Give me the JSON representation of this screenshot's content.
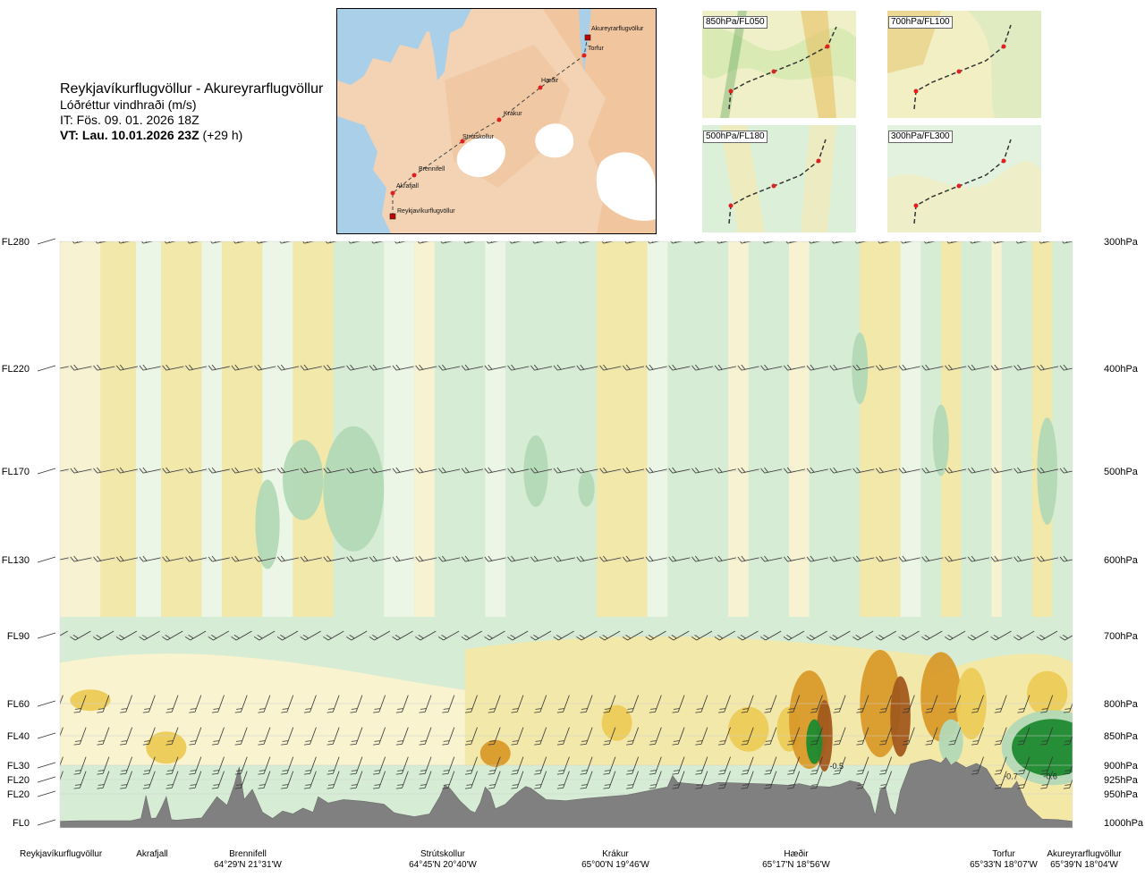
{
  "header": {
    "route_title": "Reykjavíkurflugvöllur - Akureyrarflugvöllur",
    "parameter": "Lóðréttur vindhraði (m/s)",
    "issue_time": "IT: Fös. 09. 01. 2026 18Z",
    "valid_time_bold": "VT: Lau. 10.01.2026 23Z",
    "valid_time_lead": "(+29 h)"
  },
  "map": {
    "points": [
      {
        "name": "Akureyrarflugvöllur",
        "kind": "airport"
      },
      {
        "name": "Torfur",
        "kind": "point"
      },
      {
        "name": "Hæðir",
        "kind": "point"
      },
      {
        "name": "Krákur",
        "kind": "point"
      },
      {
        "name": "Strútskollur",
        "kind": "point"
      },
      {
        "name": "Brennifell",
        "kind": "point"
      },
      {
        "name": "Akrafjall",
        "kind": "point"
      },
      {
        "name": "Reykjavíkurflugvöllur",
        "kind": "airport"
      }
    ]
  },
  "mini_maps": [
    {
      "label": "850hPa/FL050"
    },
    {
      "label": "700hPa/FL100"
    },
    {
      "label": "500hPa/FL180"
    },
    {
      "label": "300hPa/FL300"
    }
  ],
  "colors": {
    "sink_strong": "#8cbf96",
    "sink_mid": "#b3d9b6",
    "sink_light": "#d6ecd4",
    "sink_faint": "#eef7e8",
    "rise_faint": "#fbf3d0",
    "rise_light": "#f5e8a4",
    "rise_mid": "#eccb56",
    "rise_strong": "#d99a2a",
    "rise_max": "#a25a1e",
    "lift_green": "#1e8a30",
    "terrain": "#808080",
    "route_line": "#444444"
  },
  "chart_data": {
    "type": "heatmap",
    "title": "Reykjavíkurflugvöllur - Akureyrarflugvöllur",
    "quantity": "Lóðréttur vindhraði (m/s)",
    "x_range": [
      0,
      1
    ],
    "flight_levels": [
      {
        "label": "FL280",
        "hpa": "300hPa",
        "p": 300
      },
      {
        "label": "FL220",
        "hpa": "400hPa",
        "p": 400
      },
      {
        "label": "FL170",
        "hpa": "500hPa",
        "p": 500
      },
      {
        "label": "FL130",
        "hpa": "600hPa",
        "p": 600
      },
      {
        "label": "FL90",
        "hpa": "700hPa",
        "p": 700
      },
      {
        "label": "FL60",
        "hpa": "800hPa",
        "p": 800
      },
      {
        "label": "FL40",
        "hpa": "850hPa",
        "p": 850
      },
      {
        "label": "FL30",
        "hpa": "900hPa",
        "p": 900
      },
      {
        "label": "FL20",
        "hpa": "925hPa",
        "p": 925
      },
      {
        "label": "FL20",
        "hpa": "950hPa",
        "p": 950
      },
      {
        "label": "FL0",
        "hpa": "1000hPa",
        "p": 1000
      }
    ],
    "waypoints": [
      {
        "name": "Reykjavíkurflugvöllur",
        "coords": "",
        "x": 0.0
      },
      {
        "name": "Akrafjall",
        "coords": "",
        "x": 0.093
      },
      {
        "name": "Brennifell",
        "coords": "64°29'N 21°31'W",
        "x": 0.186
      },
      {
        "name": "Strútskollur",
        "coords": "64°45'N 20°40'W",
        "x": 0.394
      },
      {
        "name": "Krákur",
        "coords": "65°00'N 19°46'W",
        "x": 0.572
      },
      {
        "name": "Hæðir",
        "coords": "65°17'N 18°56'W",
        "x": 0.778
      },
      {
        "name": "Torfur",
        "coords": "65°33'N 18°07'W",
        "x": 0.936
      },
      {
        "name": "Akureyrarflugvöllur",
        "coords": "65°39'N 18°04'W",
        "x": 1.0
      }
    ],
    "terrain_profile_hpa": [
      [
        0.0,
        998
      ],
      [
        0.02,
        997
      ],
      [
        0.07,
        997
      ],
      [
        0.08,
        993
      ],
      [
        0.085,
        953
      ],
      [
        0.09,
        993
      ],
      [
        0.095,
        992
      ],
      [
        0.1,
        975
      ],
      [
        0.105,
        955
      ],
      [
        0.11,
        995
      ],
      [
        0.115,
        996
      ],
      [
        0.14,
        992
      ],
      [
        0.155,
        955
      ],
      [
        0.165,
        970
      ],
      [
        0.172,
        935
      ],
      [
        0.177,
        903
      ],
      [
        0.182,
        960
      ],
      [
        0.19,
        942
      ],
      [
        0.2,
        982
      ],
      [
        0.21,
        993
      ],
      [
        0.22,
        980
      ],
      [
        0.23,
        985
      ],
      [
        0.24,
        975
      ],
      [
        0.25,
        982
      ],
      [
        0.255,
        955
      ],
      [
        0.265,
        966
      ],
      [
        0.28,
        960
      ],
      [
        0.3,
        963
      ],
      [
        0.32,
        968
      ],
      [
        0.33,
        983
      ],
      [
        0.335,
        985
      ],
      [
        0.35,
        990
      ],
      [
        0.365,
        985
      ],
      [
        0.375,
        955
      ],
      [
        0.38,
        935
      ],
      [
        0.385,
        940
      ],
      [
        0.395,
        962
      ],
      [
        0.405,
        979
      ],
      [
        0.41,
        983
      ],
      [
        0.415,
        966
      ],
      [
        0.42,
        938
      ],
      [
        0.425,
        948
      ],
      [
        0.43,
        976
      ],
      [
        0.44,
        968
      ],
      [
        0.45,
        950
      ],
      [
        0.46,
        937
      ],
      [
        0.465,
        940
      ],
      [
        0.48,
        960
      ],
      [
        0.5,
        962
      ],
      [
        0.52,
        958
      ],
      [
        0.56,
        952
      ],
      [
        0.6,
        938
      ],
      [
        0.605,
        918
      ],
      [
        0.61,
        930
      ],
      [
        0.64,
        935
      ],
      [
        0.65,
        930
      ],
      [
        0.7,
        933
      ],
      [
        0.72,
        935
      ],
      [
        0.73,
        932
      ],
      [
        0.74,
        936
      ],
      [
        0.76,
        938
      ],
      [
        0.77,
        934
      ],
      [
        0.78,
        927
      ],
      [
        0.79,
        931
      ],
      [
        0.8,
        956
      ],
      [
        0.805,
        988
      ],
      [
        0.81,
        944
      ],
      [
        0.815,
        937
      ],
      [
        0.82,
        975
      ],
      [
        0.825,
        988
      ],
      [
        0.83,
        944
      ],
      [
        0.84,
        898
      ],
      [
        0.85,
        893
      ],
      [
        0.86,
        890
      ],
      [
        0.87,
        896
      ],
      [
        0.875,
        887
      ],
      [
        0.88,
        900
      ],
      [
        0.885,
        894
      ],
      [
        0.895,
        904
      ],
      [
        0.905,
        897
      ],
      [
        0.915,
        906
      ],
      [
        0.925,
        935
      ],
      [
        0.93,
        940
      ],
      [
        0.94,
        940
      ],
      [
        0.945,
        928
      ],
      [
        0.955,
        970
      ],
      [
        0.97,
        994
      ],
      [
        0.985,
        995
      ],
      [
        1.0,
        998
      ]
    ],
    "cell_values": [
      {
        "label": "-0.5",
        "x": 0.767,
        "p": 900
      },
      {
        "label": "-0.7",
        "x": 0.939,
        "p": 918
      },
      {
        "label": "-0.6",
        "x": 0.978,
        "p": 918
      }
    ],
    "legend": "none"
  }
}
